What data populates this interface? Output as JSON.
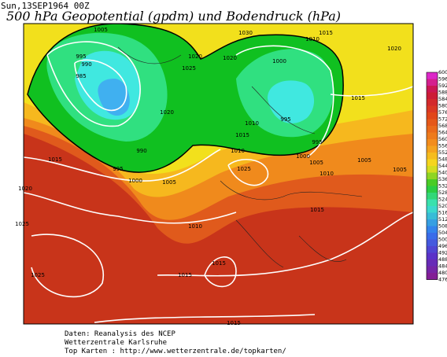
{
  "header": {
    "date": "Sun,13SEP1964 00Z",
    "title": "500 hPa Geopotential (gpdm) und Bodendruck (hPa)"
  },
  "colorbar": {
    "labels": [
      "600",
      "596",
      "592",
      "588",
      "584",
      "580",
      "576",
      "572",
      "568",
      "564",
      "560",
      "556",
      "552",
      "548",
      "544",
      "540",
      "536",
      "532",
      "528",
      "524",
      "520",
      "516",
      "512",
      "508",
      "504",
      "500",
      "496",
      "492",
      "488",
      "484",
      "480",
      "476"
    ]
  },
  "isobar_labels": [
    "1005",
    "995",
    "990",
    "985",
    "1020",
    "1025",
    "1020",
    "990",
    "995",
    "1000",
    "1005",
    "1015",
    "1020",
    "1025",
    "1025",
    "1010",
    "1015",
    "1015",
    "1030",
    "1010",
    "1015",
    "1020",
    "1000",
    "1010",
    "1015",
    "995",
    "995",
    "1000",
    "1005",
    "1025",
    "1010",
    "1015",
    "1005",
    "1015",
    "1015",
    "1005",
    "1020",
    "1010"
  ],
  "footer": {
    "line1": "Daten: Reanalysis des NCEP",
    "line2": "Wetterzentrale Karlsruhe",
    "line3": "Top Karten :  http://www.wetterzentrale.de/topkarten/"
  }
}
